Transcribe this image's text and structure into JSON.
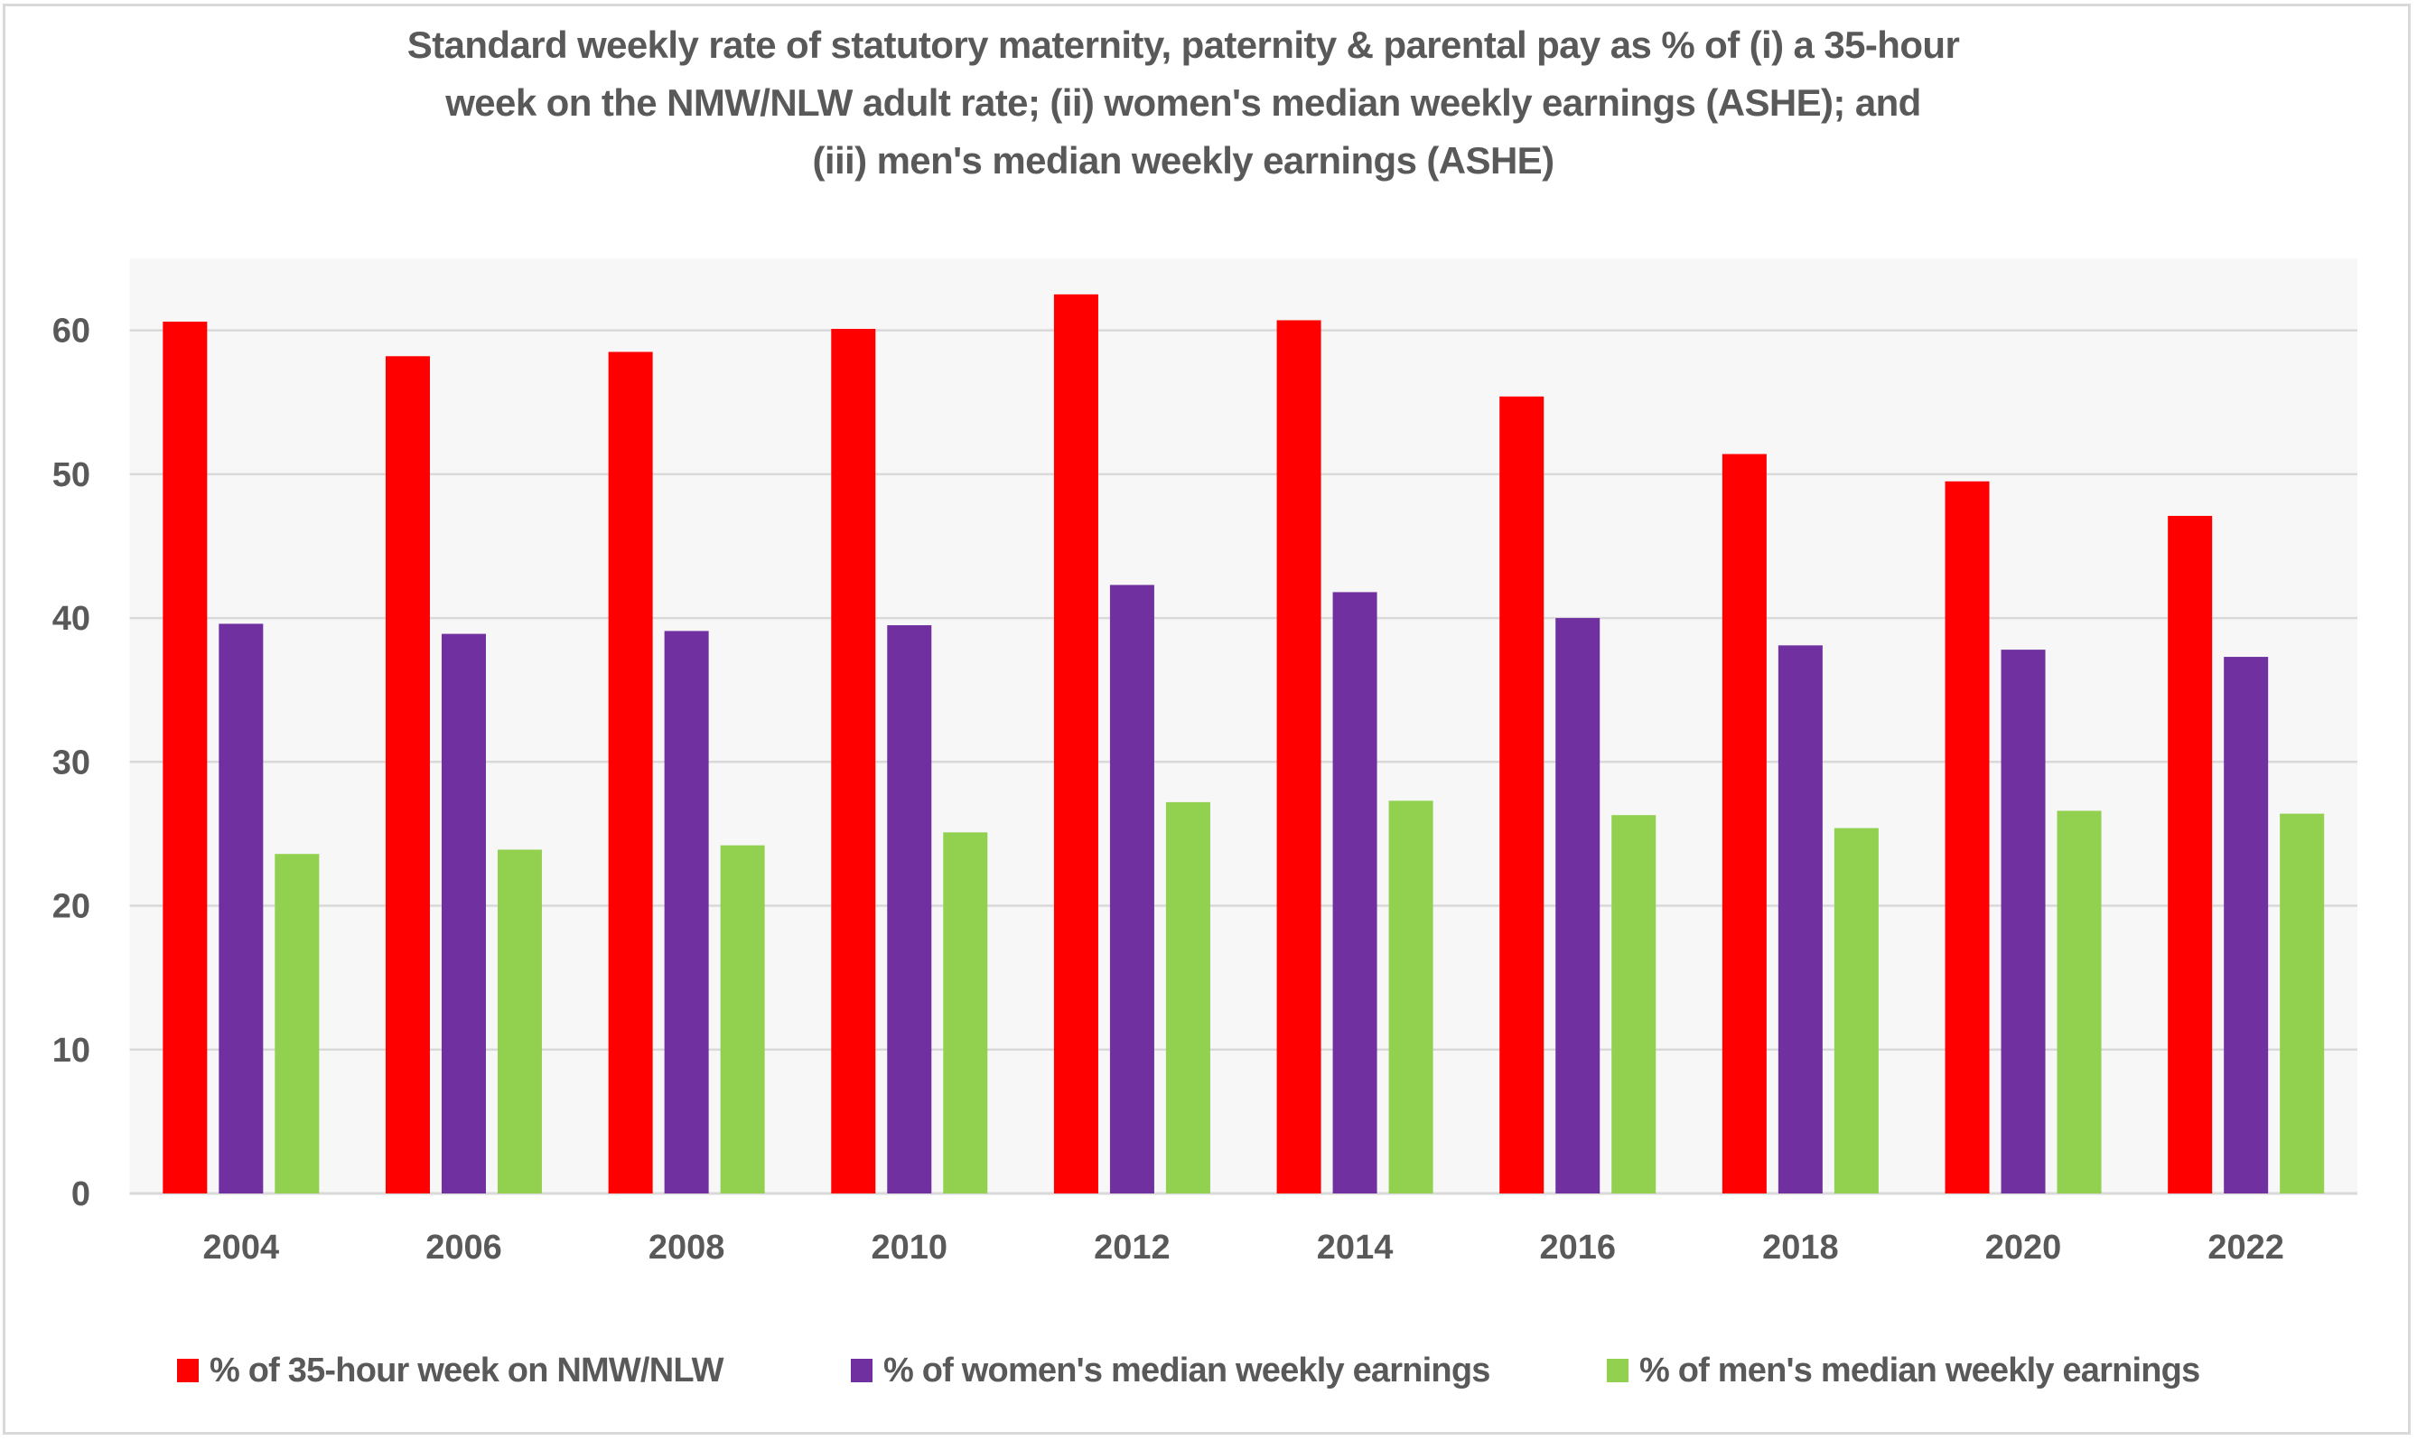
{
  "chart_data": {
    "type": "bar",
    "title": [
      "Standard weekly rate of statutory maternity, paternity & parental pay as % of (i) a 35-hour",
      "week on the NMW/NLW adult rate; (ii) women's median weekly earnings (ASHE); and",
      "(iii) men's median weekly earnings (ASHE)"
    ],
    "xlabel": "",
    "ylabel": "",
    "categories": [
      "2004",
      "2006",
      "2008",
      "2010",
      "2012",
      "2014",
      "2016",
      "2018",
      "2020",
      "2022"
    ],
    "series": [
      {
        "name": "% of 35-hour week on NMW/NLW",
        "color": "#FF0000",
        "values": [
          60.6,
          58.2,
          58.5,
          60.1,
          62.5,
          60.7,
          55.4,
          51.4,
          49.5,
          47.1
        ]
      },
      {
        "name": "% of women's median weekly earnings",
        "color": "#7030A0",
        "values": [
          39.6,
          38.9,
          39.1,
          39.5,
          42.3,
          41.8,
          40.0,
          38.1,
          37.8,
          37.3
        ]
      },
      {
        "name": "% of men's median weekly earnings",
        "color": "#92D050",
        "values": [
          23.6,
          23.9,
          24.2,
          25.1,
          27.2,
          27.3,
          26.3,
          25.4,
          26.6,
          26.4
        ]
      }
    ],
    "ylim": [
      0,
      65
    ],
    "yticks": [
      0,
      10,
      20,
      30,
      40,
      50,
      60
    ],
    "grid": true,
    "legend_position": "bottom"
  }
}
